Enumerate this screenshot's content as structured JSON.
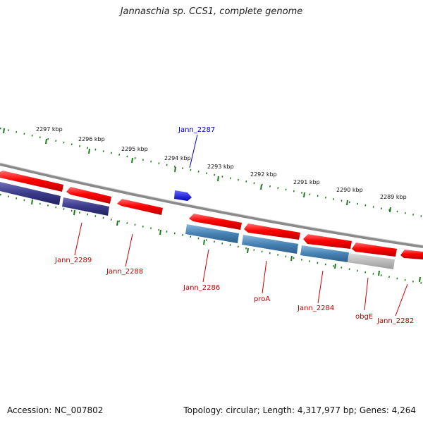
{
  "title": "Jannaschia sp. CCS1, complete genome",
  "footer": {
    "accession": "Accession: NC_007802",
    "topology": "Topology: circular; Length: 4,317,977 bp; Genes: 4,264"
  },
  "colors": {
    "forward_gene": "#ff0000",
    "reverse_gene_cog_a": "#3a3a8a",
    "reverse_gene_cog_b": "#4682b4",
    "reverse_gene_grey": "#b0b0b0",
    "label_forward": "#0000cc",
    "label_reverse": "#cc0000",
    "tick": "#1a7a1a",
    "backbone": "#888888",
    "rna": "#0000ff"
  },
  "ticks": [
    {
      "label": "2297 kbp"
    },
    {
      "label": "2296 kbp"
    },
    {
      "label": "2295 kbp"
    },
    {
      "label": "2294 kbp"
    },
    {
      "label": "2293 kbp"
    },
    {
      "label": "2292 kbp"
    },
    {
      "label": "2291 kbp"
    },
    {
      "label": "2290 kbp"
    },
    {
      "label": "2289 kbp"
    }
  ],
  "gene_labels": [
    {
      "name": "Jann_2287",
      "strand": "forward"
    },
    {
      "name": "Jann_2289",
      "strand": "reverse"
    },
    {
      "name": "Jann_2288",
      "strand": "reverse"
    },
    {
      "name": "Jann_2286",
      "strand": "reverse"
    },
    {
      "name": "proA",
      "strand": "reverse"
    },
    {
      "name": "Jann_2284",
      "strand": "reverse"
    },
    {
      "name": "obgE",
      "strand": "reverse"
    },
    {
      "name": "Jann_2282",
      "strand": "reverse"
    }
  ]
}
